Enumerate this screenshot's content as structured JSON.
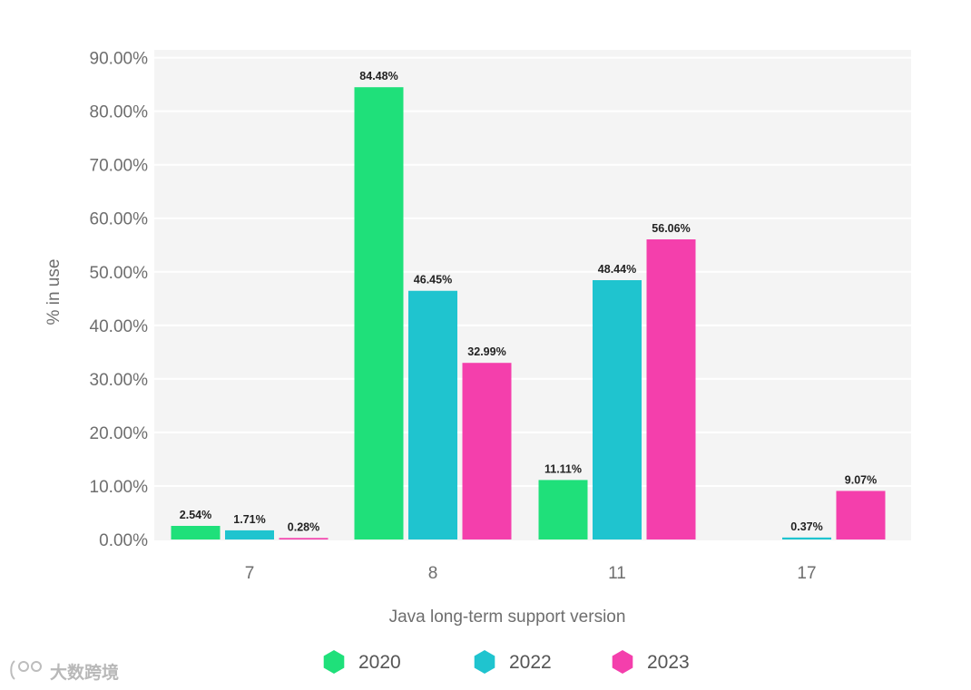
{
  "chart_data": {
    "type": "bar",
    "title": "",
    "xlabel": "Java long-term support version",
    "ylabel": "% in use",
    "categories": [
      "7",
      "8",
      "11",
      "17"
    ],
    "series": [
      {
        "name": "2020",
        "color": "#1fe07a",
        "values": [
          2.54,
          84.48,
          11.11,
          null
        ],
        "labels": [
          "2.54%",
          "84.48%",
          "11.11%",
          ""
        ]
      },
      {
        "name": "2022",
        "color": "#1fc4cf",
        "values": [
          1.71,
          46.45,
          48.44,
          0.37
        ],
        "labels": [
          "1.71%",
          "46.45%",
          "48.44%",
          "0.37%"
        ]
      },
      {
        "name": "2023",
        "color": "#f43fac",
        "values": [
          0.28,
          32.99,
          56.06,
          9.07
        ],
        "labels": [
          "0.28%",
          "32.99%",
          "56.06%",
          "9.07%"
        ]
      }
    ],
    "yticks": [
      0,
      10,
      20,
      30,
      40,
      50,
      60,
      70,
      80,
      90
    ],
    "ytick_labels": [
      "0.00%",
      "10.00%",
      "20.00%",
      "30.00%",
      "40.00%",
      "50.00%",
      "60.00%",
      "70.00%",
      "80.00%",
      "90.00%"
    ],
    "ylim": [
      0,
      90
    ],
    "grid": true,
    "legend_position": "bottom-center",
    "legend_icon": "hexagon-icon"
  },
  "watermark": {
    "text": "大数跨境",
    "icon": "logo-icon"
  }
}
